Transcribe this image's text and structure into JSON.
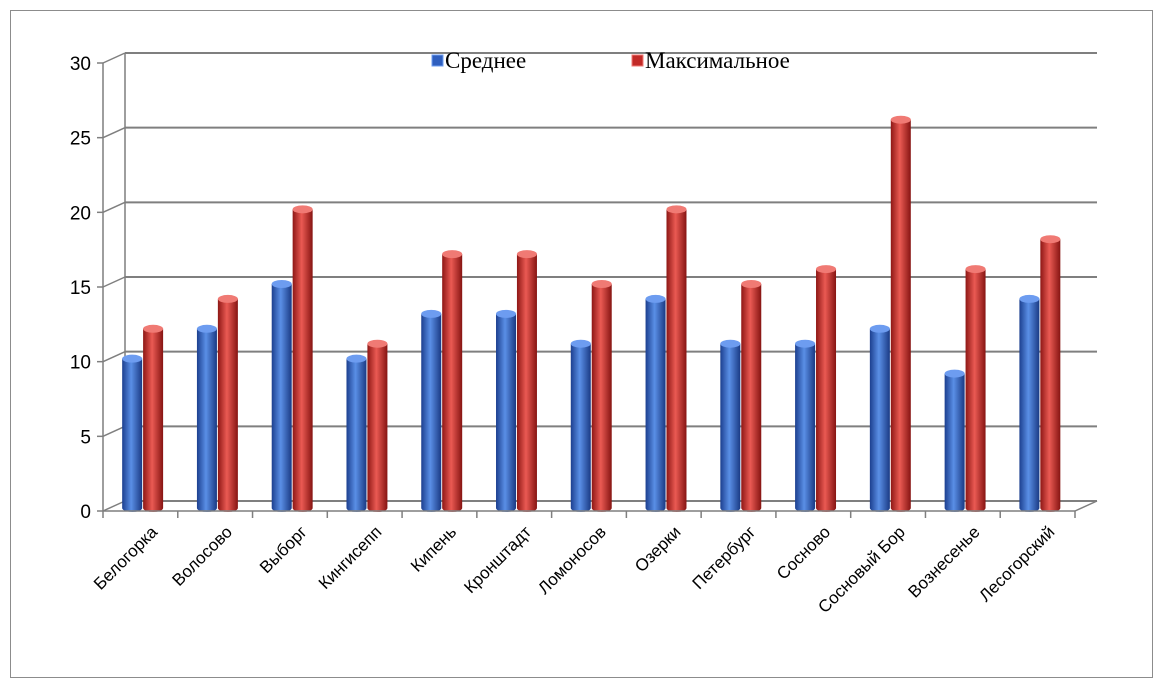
{
  "chart_data": {
    "type": "bar",
    "categories": [
      "Белогорка",
      "Волосово",
      "Выборг",
      "Кингисепп",
      "Кипень",
      "Кронштадт",
      "Ломоносов",
      "Озерки",
      "Петербург",
      "Сосново",
      "Сосновый Бор",
      "Вознесенье",
      "Лесогорский"
    ],
    "series": [
      {
        "name": "Среднее",
        "values": [
          10,
          12,
          15,
          10,
          13,
          13,
          11,
          14,
          11,
          11,
          12,
          9,
          14
        ]
      },
      {
        "name": "Максимальное",
        "values": [
          12,
          14,
          20,
          11,
          17,
          17,
          15,
          20,
          15,
          16,
          26,
          16,
          18
        ]
      }
    ],
    "yticks": [
      0,
      5,
      10,
      15,
      20,
      25,
      30
    ],
    "ylim": [
      0,
      30
    ],
    "grid": true,
    "legend_position": "top",
    "colors": {
      "series1": "#2f5fbf",
      "series2": "#c22a27"
    }
  }
}
